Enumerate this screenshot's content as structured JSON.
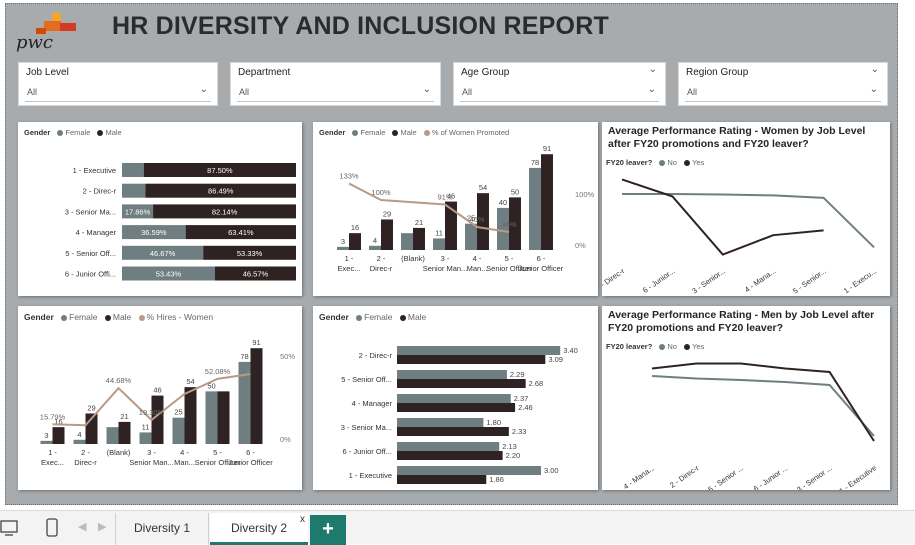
{
  "title": "HR DIVERSITY AND INCLUSION REPORT",
  "logo_text": "pwc",
  "colors": {
    "female": "#6f7f81",
    "male": "#2f2222",
    "line": "#b89a86",
    "logo_orange": "#e46b1f"
  },
  "slicers": [
    {
      "label": "Job Level",
      "value": "All"
    },
    {
      "label": "Department",
      "value": "All"
    },
    {
      "label": "Age Group",
      "value": "All"
    },
    {
      "label": "Region Group",
      "value": "All"
    }
  ],
  "chart_data": [
    {
      "type": "bar",
      "stacked": "100%",
      "legend": {
        "title": "Gender",
        "items": [
          "Female",
          "Male"
        ]
      },
      "categories": [
        "1 - Executive",
        "2 - Direc-r",
        "3 - Senior Ma...",
        "4 - Manager",
        "5 - Senior Off...",
        "6 - Junior Offi..."
      ],
      "series": [
        {
          "name": "Female",
          "values": [
            12.5,
            13.51,
            17.86,
            36.59,
            46.67,
            53.43
          ],
          "labels": [
            "",
            "",
            "17.86%",
            "36.59%",
            "46.67%",
            "53.43%"
          ]
        },
        {
          "name": "Male",
          "values": [
            87.5,
            86.49,
            82.14,
            63.41,
            53.33,
            46.57
          ],
          "labels": [
            "87.50%",
            "86.49%",
            "82.14%",
            "63.41%",
            "53.33%",
            "46.57%"
          ]
        }
      ]
    },
    {
      "type": "bar",
      "subtype": "column+line",
      "legend": {
        "title": "Gender",
        "items": [
          "Female",
          "Male",
          "% of Women Promoted"
        ]
      },
      "categories": [
        "1 - Exec...",
        "2 - Direc-r",
        "(Blank)",
        "3 - Senior Man...",
        "4 - Man...",
        "5 - Senior Officer",
        "6 - Junior Officer"
      ],
      "series": [
        {
          "name": "Female",
          "values": [
            3,
            4,
            16,
            11,
            25,
            40,
            78
          ],
          "labels": [
            "3",
            "4",
            "",
            "11",
            "25",
            "40",
            "78"
          ]
        },
        {
          "name": "Male",
          "values": [
            16,
            29,
            21,
            46,
            54,
            50,
            91
          ],
          "labels": [
            "16",
            "29",
            "21",
            "46",
            "54",
            "50",
            "91"
          ]
        },
        {
          "name": "% of Women Promoted",
          "values": [
            133,
            100,
            null,
            91,
            46,
            36,
            null
          ],
          "labels": [
            "133%",
            "100%",
            "",
            "91%",
            "46%",
            "36%",
            ""
          ]
        }
      ],
      "y2_ticks": [
        "100%",
        "0%"
      ]
    },
    {
      "type": "line",
      "title": "Average Performance Rating - Women by Job Level after FY20 promotions and FY20 leaver?",
      "legend": {
        "title": "FY20 leaver?",
        "items": [
          "No",
          "Yes"
        ]
      },
      "categories": [
        "2 - Direc-r",
        "6 - Junior...",
        "3 - Senior...",
        "4 - Mana...",
        "5 - Senior...",
        "1 - Execu..."
      ],
      "series": [
        {
          "name": "No",
          "values": [
            3.0,
            3.0,
            2.99,
            2.97,
            2.92,
            1.9
          ]
        },
        {
          "name": "Yes",
          "values": [
            3.3,
            2.95,
            1.75,
            2.15,
            2.25,
            null
          ]
        }
      ]
    },
    {
      "type": "bar",
      "subtype": "column+line",
      "legend": {
        "title": "Gender",
        "items": [
          "Female",
          "Male",
          "% Hires - Women"
        ]
      },
      "categories": [
        "1 - Exec...",
        "2 - Direc-r",
        "(Blank)",
        "3 - Senior Man...",
        "4 - Man...",
        "5 - Senior Officer",
        "6 - Junior Officer"
      ],
      "series": [
        {
          "name": "Female",
          "values": [
            3,
            4,
            16,
            11,
            25,
            50,
            78
          ],
          "labels": [
            "3",
            "4",
            "",
            "11",
            "25",
            "50",
            "78"
          ]
        },
        {
          "name": "Male",
          "values": [
            16,
            29,
            21,
            46,
            54,
            50,
            91
          ],
          "labels": [
            "16",
            "29",
            "21",
            "46",
            "54",
            "",
            "91"
          ]
        },
        {
          "name": "% Hires - Women",
          "values": [
            15.79,
            15.0,
            44.68,
            19.3,
            40.0,
            52.08,
            56.0
          ],
          "labels": [
            "15.79%",
            "",
            "44.68%",
            "19.30%",
            "",
            "52.08%",
            ""
          ]
        }
      ],
      "y2_ticks": [
        "50%",
        "0%"
      ]
    },
    {
      "type": "bar",
      "orientation": "horizontal",
      "legend": {
        "title": "Gender",
        "items": [
          "Female",
          "Male"
        ]
      },
      "categories": [
        "2 - Direc-r",
        "5 - Senior Off...",
        "4 - Manager",
        "3 - Senior Ma...",
        "6 - Junior Off...",
        "1 - Executive"
      ],
      "series": [
        {
          "name": "Female",
          "values": [
            3.4,
            2.29,
            2.37,
            1.8,
            2.13,
            3.0
          ]
        },
        {
          "name": "Male",
          "values": [
            3.09,
            2.68,
            2.46,
            2.33,
            2.2,
            1.86
          ]
        }
      ]
    },
    {
      "type": "line",
      "title": "Average Performance Rating - Men by Job Level after FY20 promotions and FY20 leaver?",
      "legend": {
        "title": "FY20 leaver?",
        "items": [
          "No",
          "Yes"
        ]
      },
      "categories": [
        "4 - Mana...",
        "2 - Direc-r",
        "5 - Senior ...",
        "6 - Junior ...",
        "3 - Senior ...",
        "1 - Executive"
      ],
      "series": [
        {
          "name": "No",
          "values": [
            2.9,
            2.85,
            2.82,
            2.78,
            2.72,
            1.7
          ]
        },
        {
          "name": "Yes",
          "values": [
            3.05,
            3.15,
            3.15,
            3.05,
            2.98,
            1.6
          ]
        }
      ]
    }
  ],
  "tabs": [
    {
      "label": "Diversity 1",
      "active": false
    },
    {
      "label": "Diversity 2",
      "active": true
    }
  ],
  "tab_close": "x",
  "tab_add": "+"
}
